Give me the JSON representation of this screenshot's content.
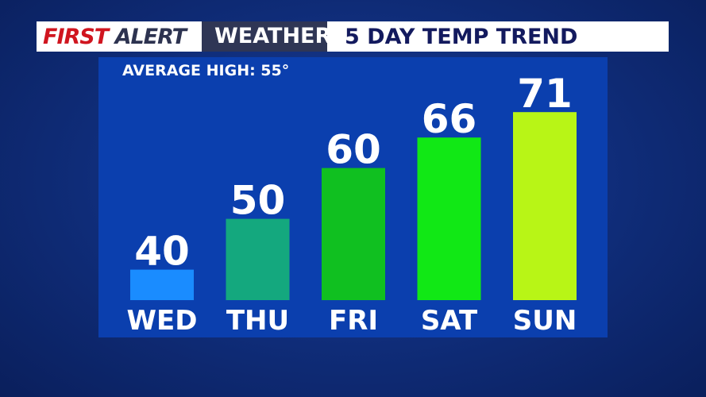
{
  "header": {
    "first": "FIRST",
    "alert": "ALERT",
    "weather": "WEATHER",
    "title": "5 DAY TEMP TREND"
  },
  "chart_data": {
    "type": "bar",
    "title": "5 DAY TEMP TREND",
    "subtitle": "AVERAGE HIGH: 55°",
    "categories": [
      "WED",
      "THU",
      "FRI",
      "SAT",
      "SUN"
    ],
    "values": [
      40,
      50,
      60,
      66,
      71
    ],
    "colors": [
      "#1a8cff",
      "#14a87e",
      "#10c020",
      "#11e815",
      "#b8f516"
    ],
    "ylim": [
      34,
      76
    ],
    "grid": false
  }
}
